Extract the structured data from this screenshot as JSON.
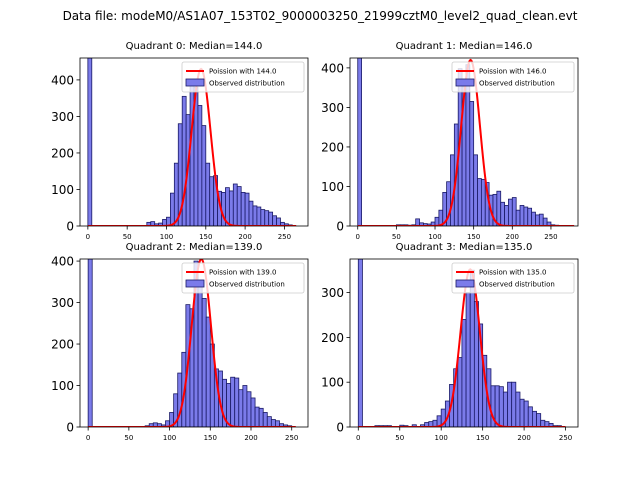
{
  "figure_title": "Data file: modeM0/AS1A07_153T02_9000003250_21999cztM0_level2_quad_clean.evt",
  "colors": {
    "bar_fill": "#7b7bea",
    "bar_edge": "#1a1a66",
    "line": "#ff0000"
  },
  "chart_data": [
    {
      "type": "bar",
      "title": "Quadrant 0: Median=144.0",
      "legend": [
        "Poission with 144.0",
        "Observed distribution"
      ],
      "legend_position": "upper right",
      "xlim": [
        -10,
        280
      ],
      "ylim": [
        0,
        460
      ],
      "xticks": [
        0,
        50,
        100,
        150,
        200,
        250
      ],
      "yticks": [
        0,
        100,
        200,
        300,
        400
      ],
      "bin_width": 5,
      "bars": [
        [
          0,
          460
        ],
        [
          75,
          10
        ],
        [
          80,
          12
        ],
        [
          85,
          6
        ],
        [
          90,
          8
        ],
        [
          95,
          18
        ],
        [
          100,
          24
        ],
        [
          105,
          90
        ],
        [
          110,
          172
        ],
        [
          115,
          280
        ],
        [
          120,
          355
        ],
        [
          125,
          305
        ],
        [
          130,
          395
        ],
        [
          135,
          380
        ],
        [
          140,
          330
        ],
        [
          145,
          275
        ],
        [
          150,
          172
        ],
        [
          155,
          135
        ],
        [
          160,
          138
        ],
        [
          165,
          95
        ],
        [
          170,
          92
        ],
        [
          175,
          105
        ],
        [
          180,
          96
        ],
        [
          185,
          115
        ],
        [
          190,
          108
        ],
        [
          195,
          92
        ],
        [
          200,
          90
        ],
        [
          205,
          68
        ],
        [
          210,
          55
        ],
        [
          215,
          52
        ],
        [
          220,
          45
        ],
        [
          225,
          42
        ],
        [
          230,
          38
        ],
        [
          235,
          28
        ],
        [
          240,
          22
        ],
        [
          245,
          10
        ],
        [
          250,
          6
        ],
        [
          255,
          3
        ]
      ],
      "poisson_mean": 144.0,
      "poisson_peak": 430,
      "poisson_xrange": [
        0,
        265
      ]
    },
    {
      "type": "bar",
      "title": "Quadrant 1: Median=146.0",
      "legend": [
        "Poission with 146.0",
        "Observed distribution"
      ],
      "legend_position": "upper right",
      "xlim": [
        -10,
        285
      ],
      "ylim": [
        0,
        425
      ],
      "xticks": [
        0,
        50,
        100,
        150,
        200,
        250
      ],
      "yticks": [
        0,
        100,
        200,
        300,
        400
      ],
      "bin_width": 5,
      "bars": [
        [
          0,
          425
        ],
        [
          50,
          3
        ],
        [
          55,
          3
        ],
        [
          60,
          3
        ],
        [
          65,
          2
        ],
        [
          70,
          3
        ],
        [
          75,
          18
        ],
        [
          80,
          8
        ],
        [
          85,
          6
        ],
        [
          90,
          5
        ],
        [
          95,
          10
        ],
        [
          100,
          22
        ],
        [
          105,
          40
        ],
        [
          110,
          85
        ],
        [
          115,
          112
        ],
        [
          120,
          180
        ],
        [
          125,
          258
        ],
        [
          130,
          398
        ],
        [
          135,
          352
        ],
        [
          140,
          408
        ],
        [
          145,
          315
        ],
        [
          150,
          180
        ],
        [
          155,
          120
        ],
        [
          160,
          118
        ],
        [
          165,
          110
        ],
        [
          170,
          78
        ],
        [
          175,
          80
        ],
        [
          180,
          88
        ],
        [
          185,
          60
        ],
        [
          190,
          52
        ],
        [
          195,
          68
        ],
        [
          200,
          72
        ],
        [
          205,
          40
        ],
        [
          210,
          52
        ],
        [
          215,
          48
        ],
        [
          220,
          45
        ],
        [
          225,
          35
        ],
        [
          230,
          28
        ],
        [
          235,
          30
        ],
        [
          240,
          20
        ],
        [
          245,
          10
        ],
        [
          250,
          3
        ],
        [
          255,
          2
        ]
      ],
      "poisson_mean": 146.0,
      "poisson_peak": 420,
      "poisson_xrange": [
        0,
        280
      ]
    },
    {
      "type": "bar",
      "title": "Quadrant 2: Median=139.0",
      "legend": [
        "Poission with 139.0",
        "Observed distribution"
      ],
      "legend_position": "upper right",
      "xlim": [
        -10,
        270
      ],
      "ylim": [
        0,
        405
      ],
      "xticks": [
        0,
        50,
        100,
        150,
        200,
        250
      ],
      "yticks": [
        0,
        100,
        200,
        300,
        400
      ],
      "bin_width": 5,
      "bars": [
        [
          0,
          405
        ],
        [
          70,
          3
        ],
        [
          75,
          8
        ],
        [
          80,
          10
        ],
        [
          85,
          8
        ],
        [
          90,
          5
        ],
        [
          95,
          15
        ],
        [
          100,
          35
        ],
        [
          105,
          80
        ],
        [
          110,
          130
        ],
        [
          115,
          180
        ],
        [
          120,
          295
        ],
        [
          125,
          285
        ],
        [
          130,
          400
        ],
        [
          135,
          350
        ],
        [
          140,
          310
        ],
        [
          145,
          265
        ],
        [
          150,
          200
        ],
        [
          155,
          140
        ],
        [
          160,
          135
        ],
        [
          165,
          115
        ],
        [
          170,
          105
        ],
        [
          175,
          120
        ],
        [
          180,
          118
        ],
        [
          185,
          90
        ],
        [
          190,
          100
        ],
        [
          195,
          85
        ],
        [
          200,
          70
        ],
        [
          205,
          48
        ],
        [
          210,
          45
        ],
        [
          215,
          35
        ],
        [
          220,
          25
        ],
        [
          225,
          18
        ],
        [
          230,
          15
        ],
        [
          235,
          8
        ],
        [
          240,
          5
        ],
        [
          245,
          3
        ]
      ],
      "poisson_mean": 139.0,
      "poisson_peak": 405,
      "poisson_xrange": [
        0,
        255
      ]
    },
    {
      "type": "bar",
      "title": "Quadrant 3: Median=135.0",
      "legend": [
        "Poission with 135.0",
        "Observed distribution"
      ],
      "legend_position": "upper right",
      "xlim": [
        -10,
        265
      ],
      "ylim": [
        0,
        375
      ],
      "xticks": [
        0,
        50,
        100,
        150,
        200,
        250
      ],
      "yticks": [
        0,
        100,
        200,
        300
      ],
      "bin_width": 5,
      "bars": [
        [
          0,
          375
        ],
        [
          20,
          3
        ],
        [
          25,
          3
        ],
        [
          30,
          3
        ],
        [
          35,
          3
        ],
        [
          50,
          4
        ],
        [
          55,
          3
        ],
        [
          65,
          5
        ],
        [
          75,
          5
        ],
        [
          80,
          10
        ],
        [
          85,
          12
        ],
        [
          90,
          15
        ],
        [
          95,
          25
        ],
        [
          100,
          40
        ],
        [
          105,
          58
        ],
        [
          110,
          95
        ],
        [
          115,
          130
        ],
        [
          120,
          155
        ],
        [
          125,
          240
        ],
        [
          130,
          300
        ],
        [
          135,
          350
        ],
        [
          140,
          280
        ],
        [
          145,
          230
        ],
        [
          150,
          160
        ],
        [
          155,
          130
        ],
        [
          160,
          92
        ],
        [
          165,
          92
        ],
        [
          170,
          90
        ],
        [
          175,
          78
        ],
        [
          180,
          100
        ],
        [
          185,
          100
        ],
        [
          190,
          78
        ],
        [
          195,
          62
        ],
        [
          200,
          58
        ],
        [
          205,
          45
        ],
        [
          210,
          35
        ],
        [
          215,
          30
        ],
        [
          220,
          15
        ],
        [
          225,
          12
        ],
        [
          230,
          8
        ],
        [
          235,
          3
        ],
        [
          240,
          3
        ]
      ],
      "poisson_mean": 135.0,
      "poisson_peak": 352,
      "poisson_xrange": [
        0,
        250
      ]
    }
  ]
}
